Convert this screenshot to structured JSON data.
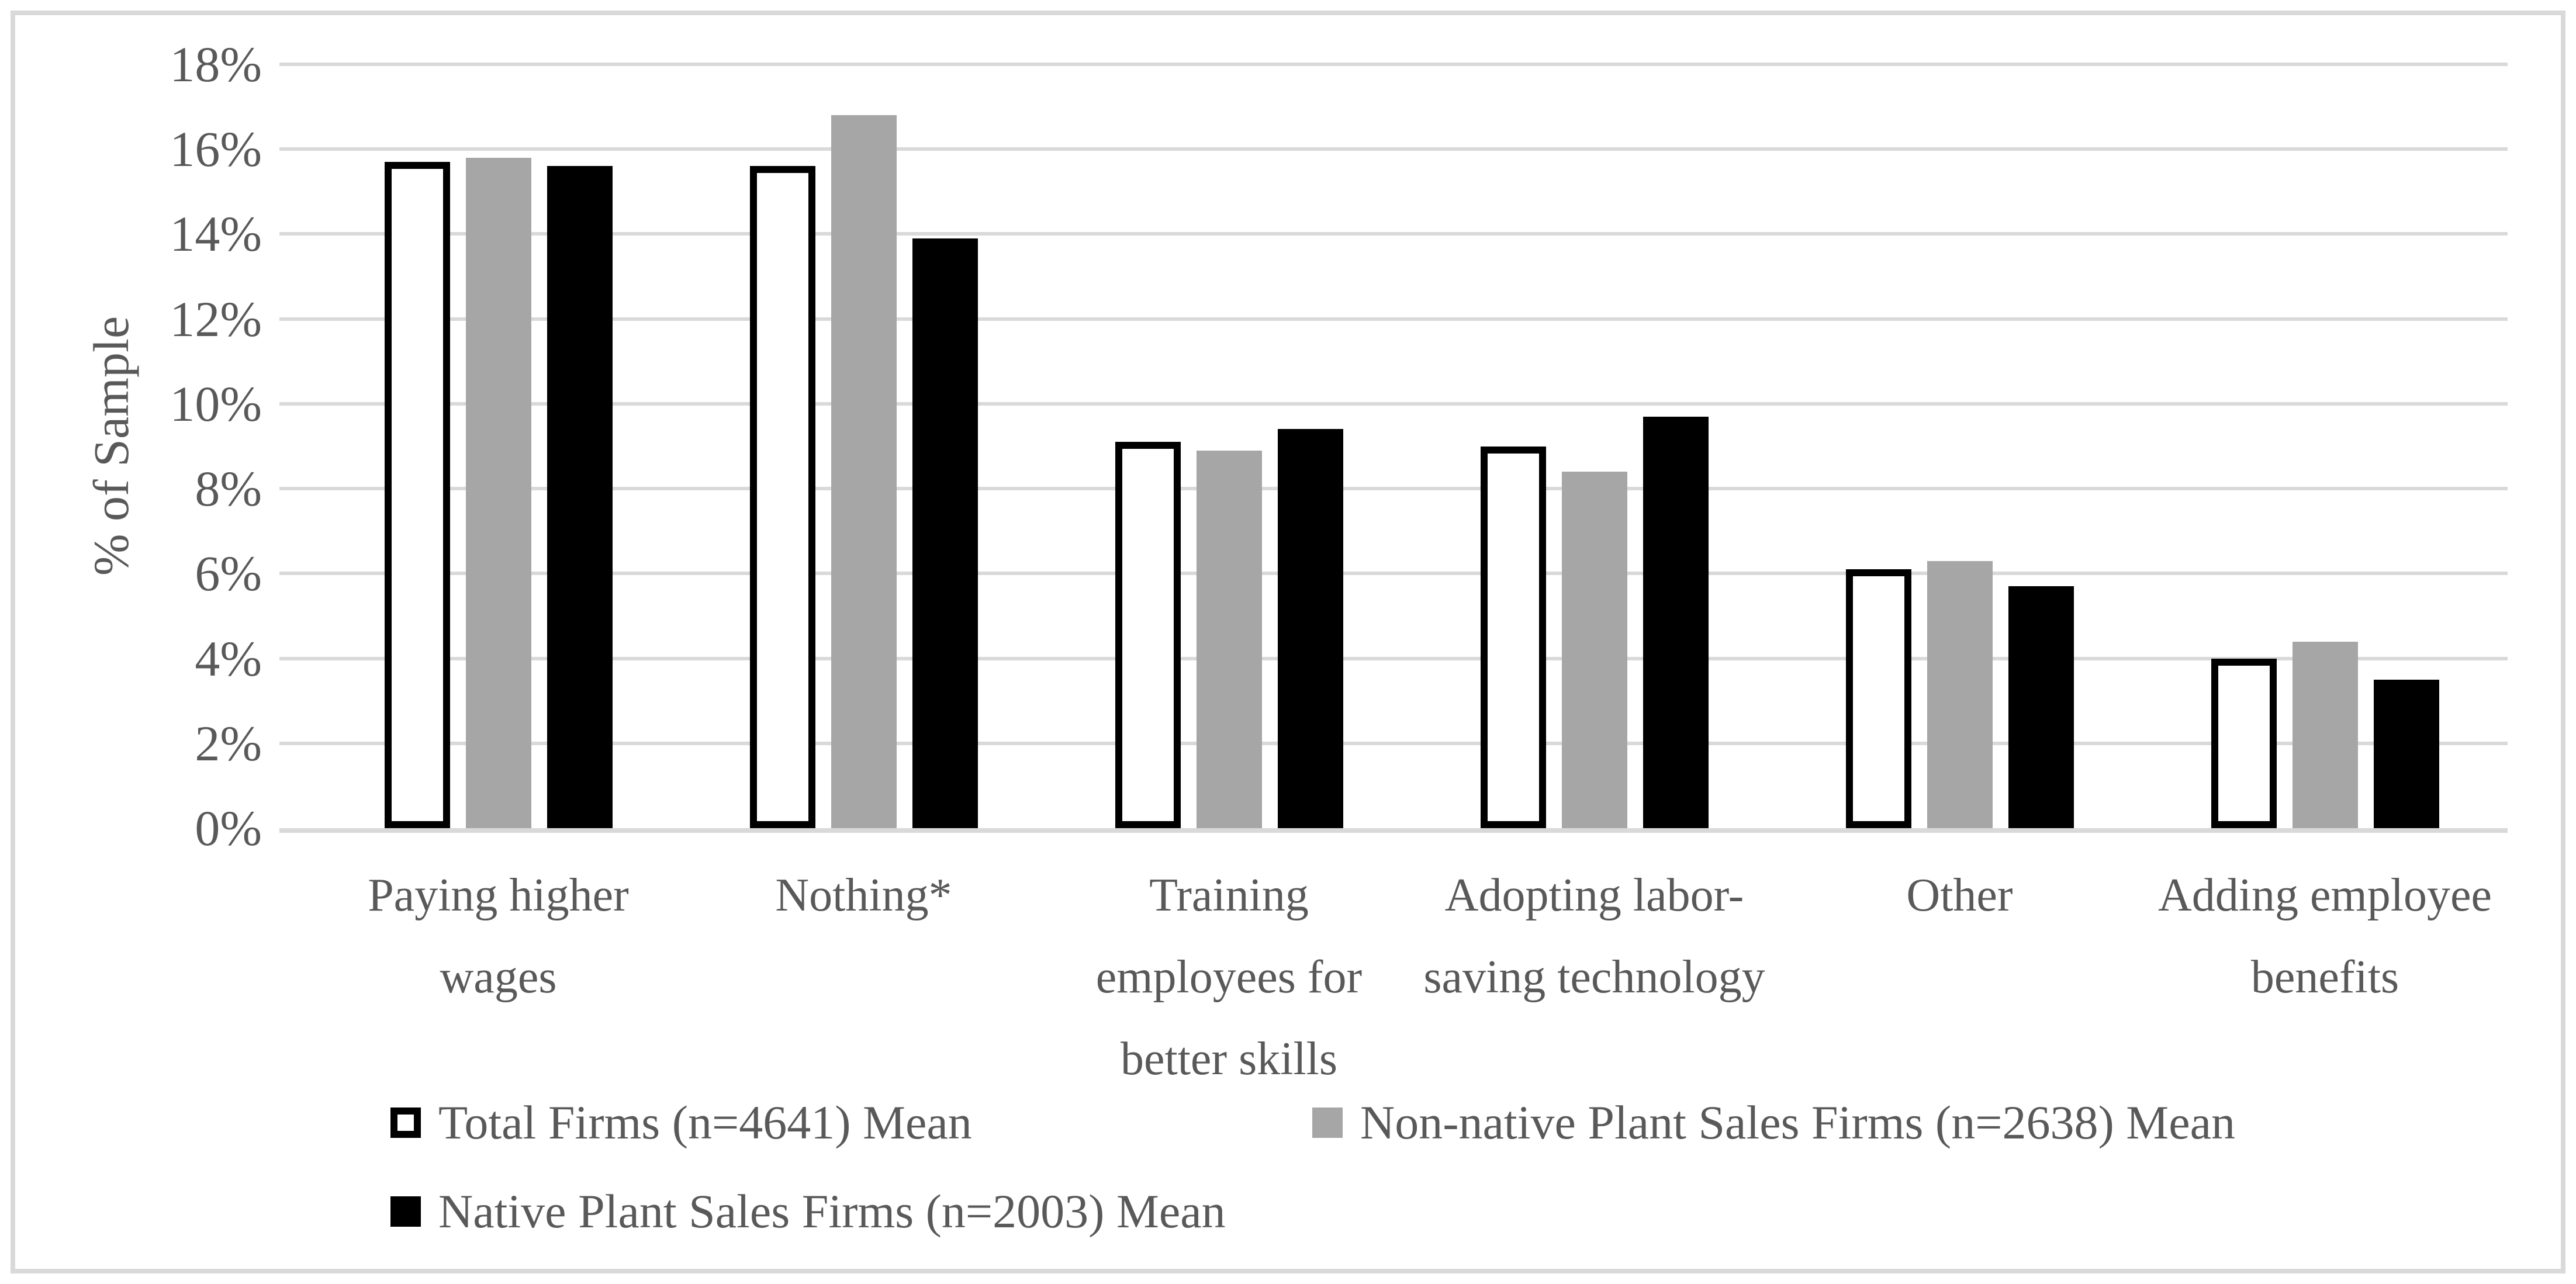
{
  "chart_data": {
    "type": "bar",
    "title": "",
    "ylabel": "% of Sample",
    "xlabel": "",
    "ylim": [
      0,
      18
    ],
    "grid": "horizontal",
    "legend_position": "bottom",
    "y_ticks": [
      {
        "value": 0,
        "label": "0%"
      },
      {
        "value": 2,
        "label": "2%"
      },
      {
        "value": 4,
        "label": "4%"
      },
      {
        "value": 6,
        "label": "6%"
      },
      {
        "value": 8,
        "label": "8%"
      },
      {
        "value": 10,
        "label": "10%"
      },
      {
        "value": 12,
        "label": "12%"
      },
      {
        "value": 14,
        "label": "14%"
      },
      {
        "value": 16,
        "label": "16%"
      },
      {
        "value": 18,
        "label": "18%"
      }
    ],
    "categories": [
      "Paying higher\nwages",
      "Nothing*",
      "Training\nemployees for\nbetter skills",
      "Adopting labor-\nsaving technology",
      "Other",
      "Adding employee\nbenefits"
    ],
    "series": [
      {
        "key": "total",
        "name": "Total Firms (n=4641) Mean",
        "fill": "#FFFFFF",
        "border": "#000000",
        "values": [
          15.7,
          15.6,
          9.1,
          9.0,
          6.1,
          4.0
        ]
      },
      {
        "key": "nonnative",
        "name": "Non-native Plant Sales Firms (n=2638) Mean",
        "fill": "#A6A6A6",
        "border": "none",
        "values": [
          15.8,
          16.8,
          8.9,
          8.4,
          6.3,
          4.4
        ]
      },
      {
        "key": "native",
        "name": "Native Plant Sales Firms (n=2003) Mean",
        "fill": "#000000",
        "border": "none",
        "values": [
          15.6,
          13.9,
          9.4,
          9.7,
          5.7,
          3.5
        ]
      }
    ],
    "colors": {
      "text": "#595959",
      "gridline": "#D9D9D9",
      "frame_border": "#D9D9D9",
      "axis_line": "#D9D9D9"
    }
  }
}
